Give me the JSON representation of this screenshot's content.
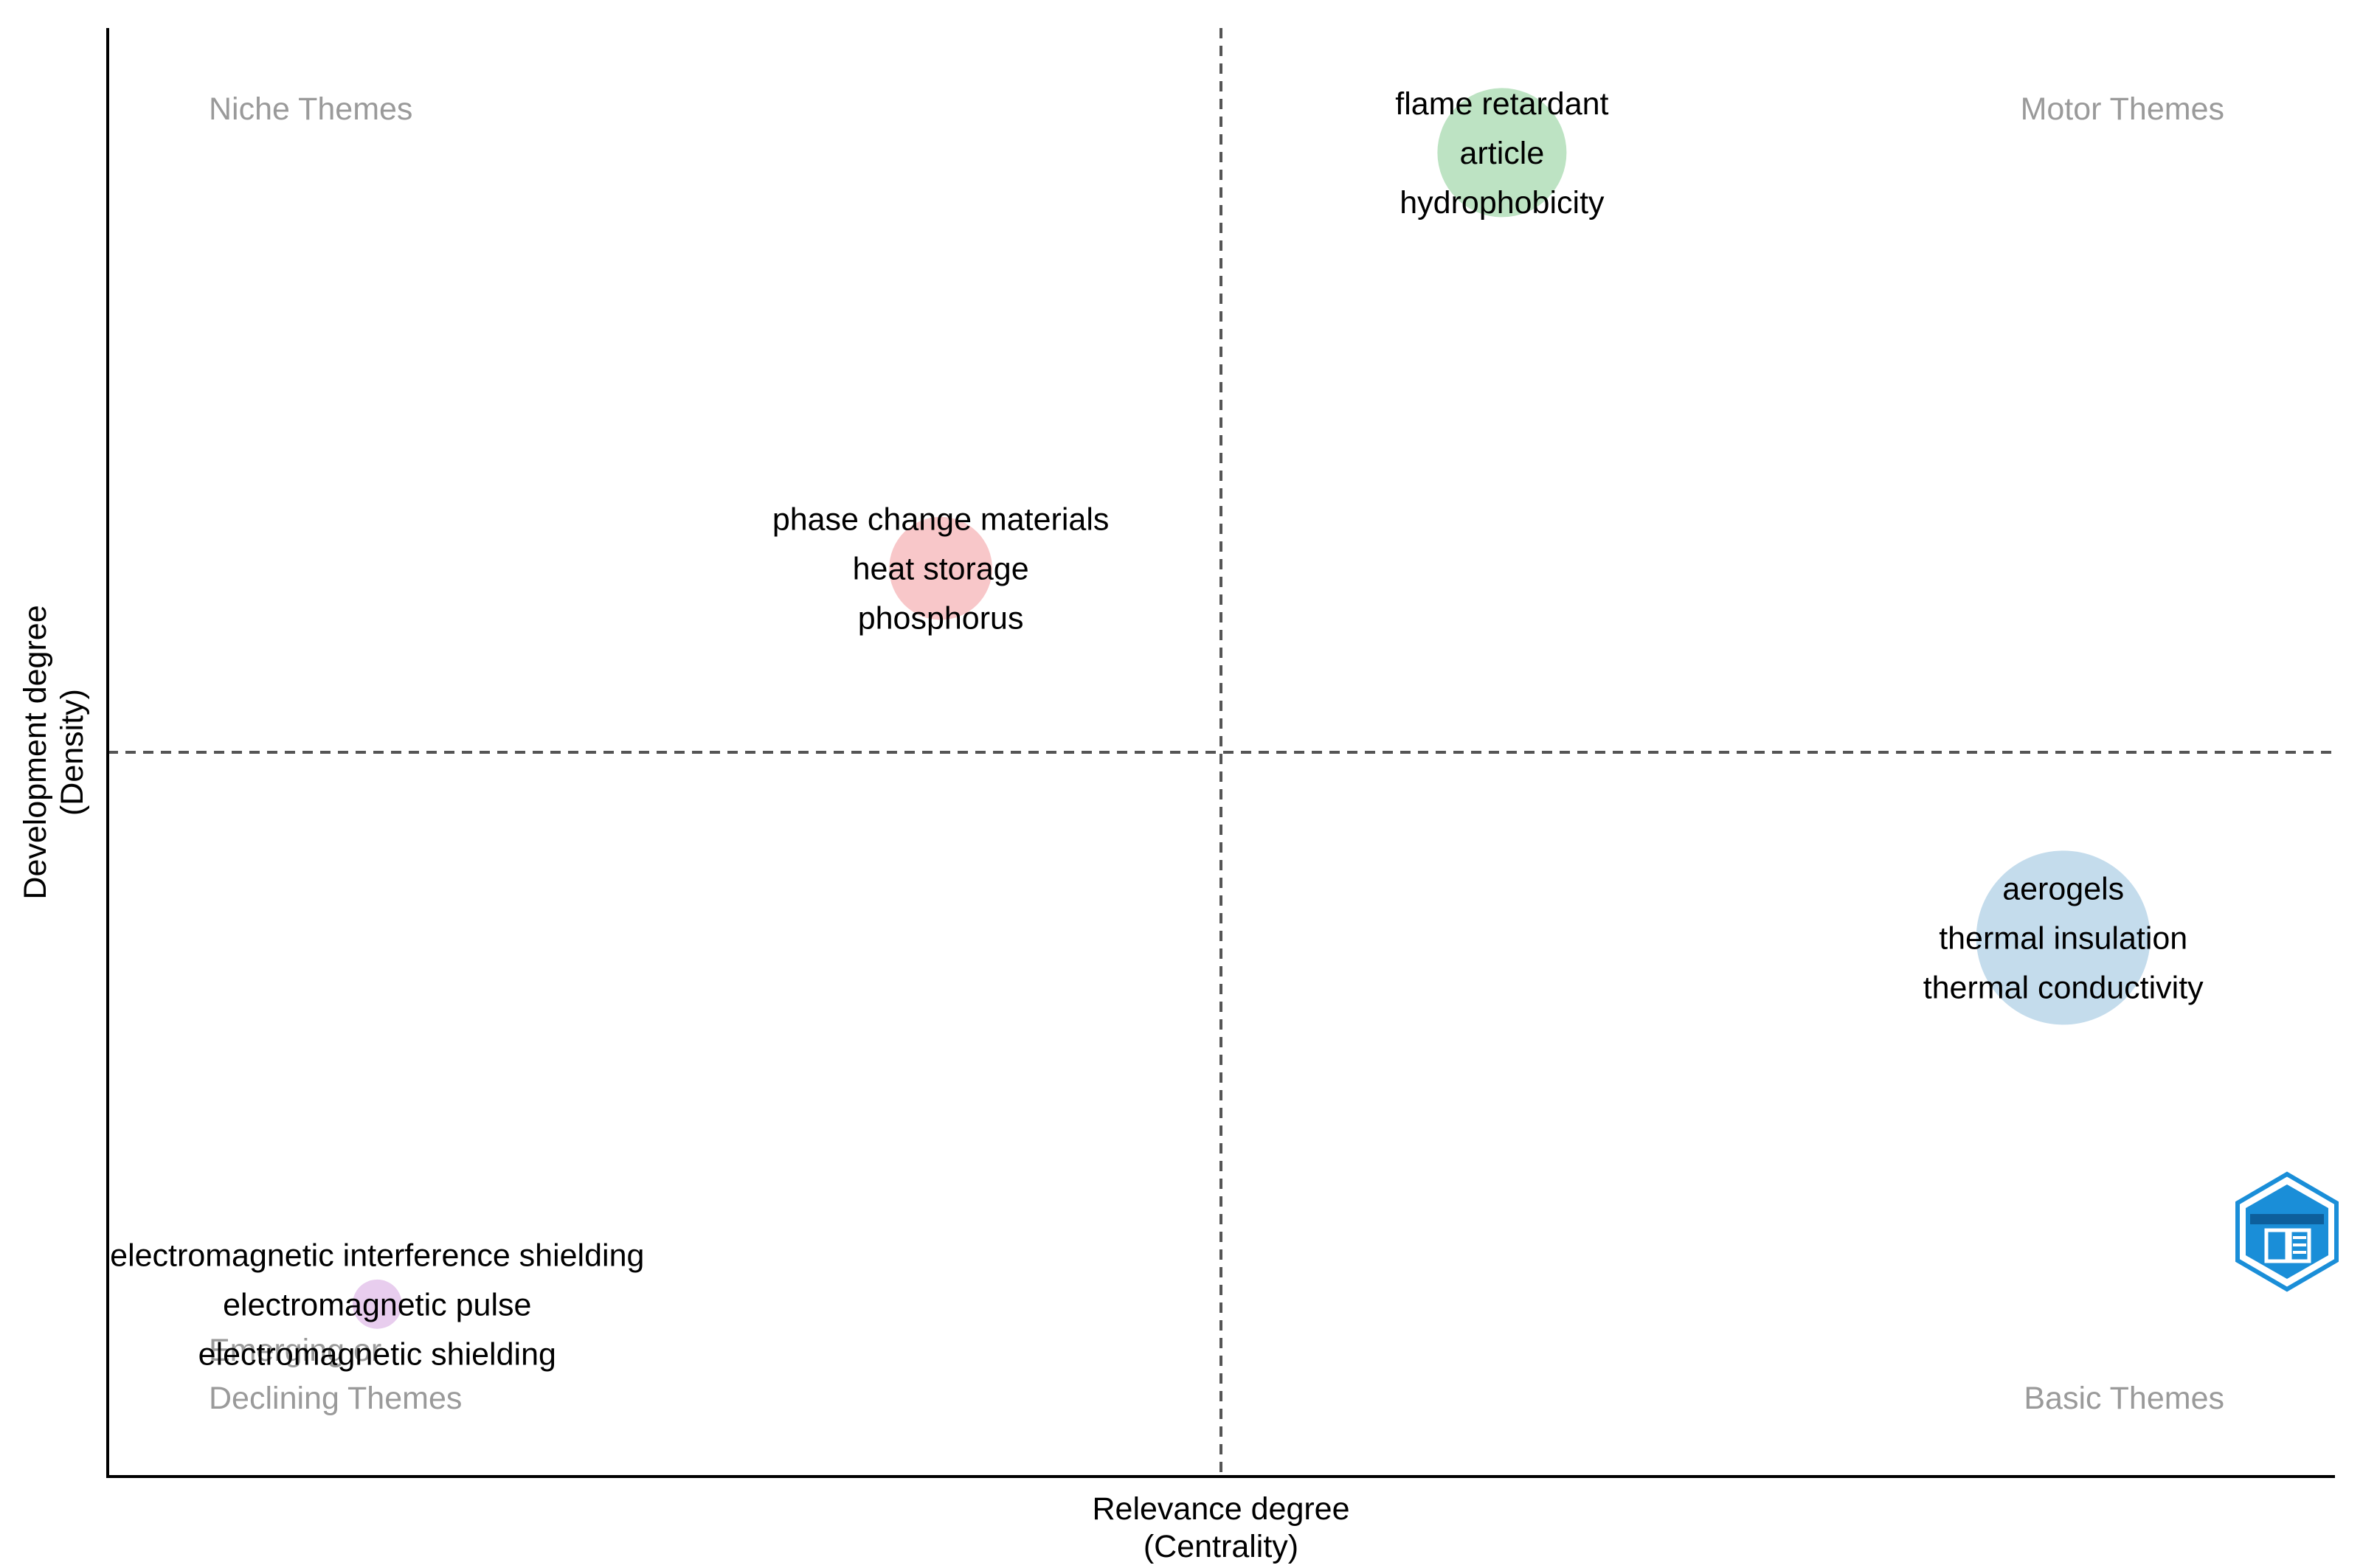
{
  "chart_data": {
    "type": "scatter",
    "title": "",
    "xlabel": "Relevance degree",
    "xlabel_sub": "(Centrality)",
    "ylabel": "Development degree",
    "ylabel_sub": "(Density)",
    "grid": false,
    "axis_ticks_shown": false,
    "quadrant_labels": {
      "top_left": "Niche Themes",
      "top_right": "Motor Themes",
      "bottom_left": "Declining Themes",
      "bottom_left_overlapped": "Emerging or",
      "bottom_right": "Basic Themes"
    },
    "themes": [
      {
        "keywords": [
          "flame retardant",
          "article",
          "hydrophobicity"
        ],
        "centrality": 0.626,
        "density": 0.914,
        "size": 0.55,
        "color": "#bde3c3"
      },
      {
        "keywords": [
          "phase change materials",
          "heat storage",
          "phosphorus"
        ],
        "centrality": 0.374,
        "density": 0.627,
        "size": 0.35,
        "color": "#f8c7c9"
      },
      {
        "keywords": [
          "aerogels",
          "thermal insulation",
          "thermal conductivity"
        ],
        "centrality": 0.878,
        "density": 0.372,
        "size": 1.0,
        "color": "#c4dcec"
      },
      {
        "keywords": [
          "electromagnetic interference shielding",
          "electromagnetic pulse",
          "electromagnetic shielding"
        ],
        "centrality": 0.121,
        "density": 0.119,
        "size": 0.08,
        "color": "#e8cdee"
      }
    ],
    "threshold_x": 0.5,
    "threshold_y": 0.5
  },
  "logo": {
    "name": "bibliometrix-logo",
    "color": "#1a8ed8"
  }
}
